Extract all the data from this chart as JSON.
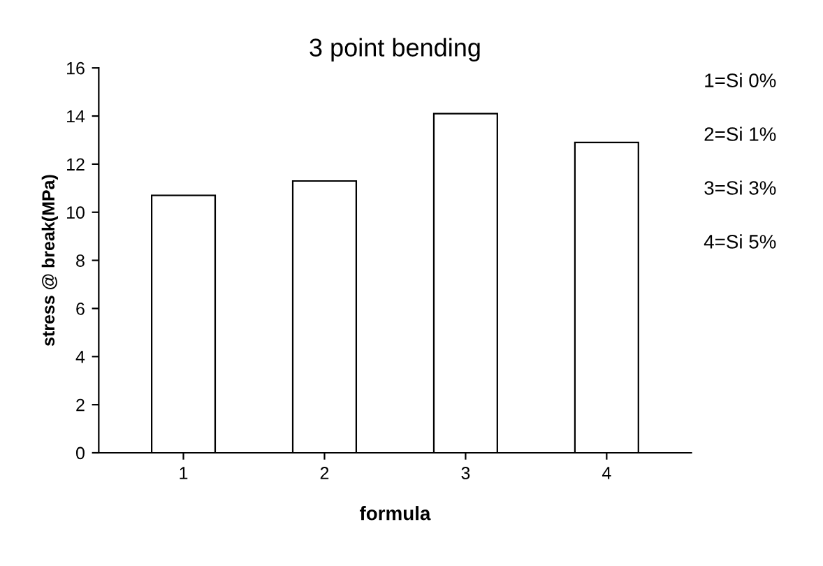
{
  "chart_data": {
    "type": "bar",
    "title": "3 point bending",
    "xlabel": "formula",
    "ylabel": "stress @ break(MPa)",
    "categories": [
      "1",
      "2",
      "3",
      "4"
    ],
    "values": [
      10.7,
      11.3,
      14.1,
      12.9
    ],
    "color": "#ffffff",
    "ylim": [
      0,
      16
    ],
    "yticks": [
      0,
      2,
      4,
      6,
      8,
      10,
      12,
      14,
      16
    ],
    "grid": false,
    "annotations": [
      "1=Si 0%",
      "2=Si 1%",
      "3=Si 3%",
      "4=Si 5%"
    ]
  }
}
